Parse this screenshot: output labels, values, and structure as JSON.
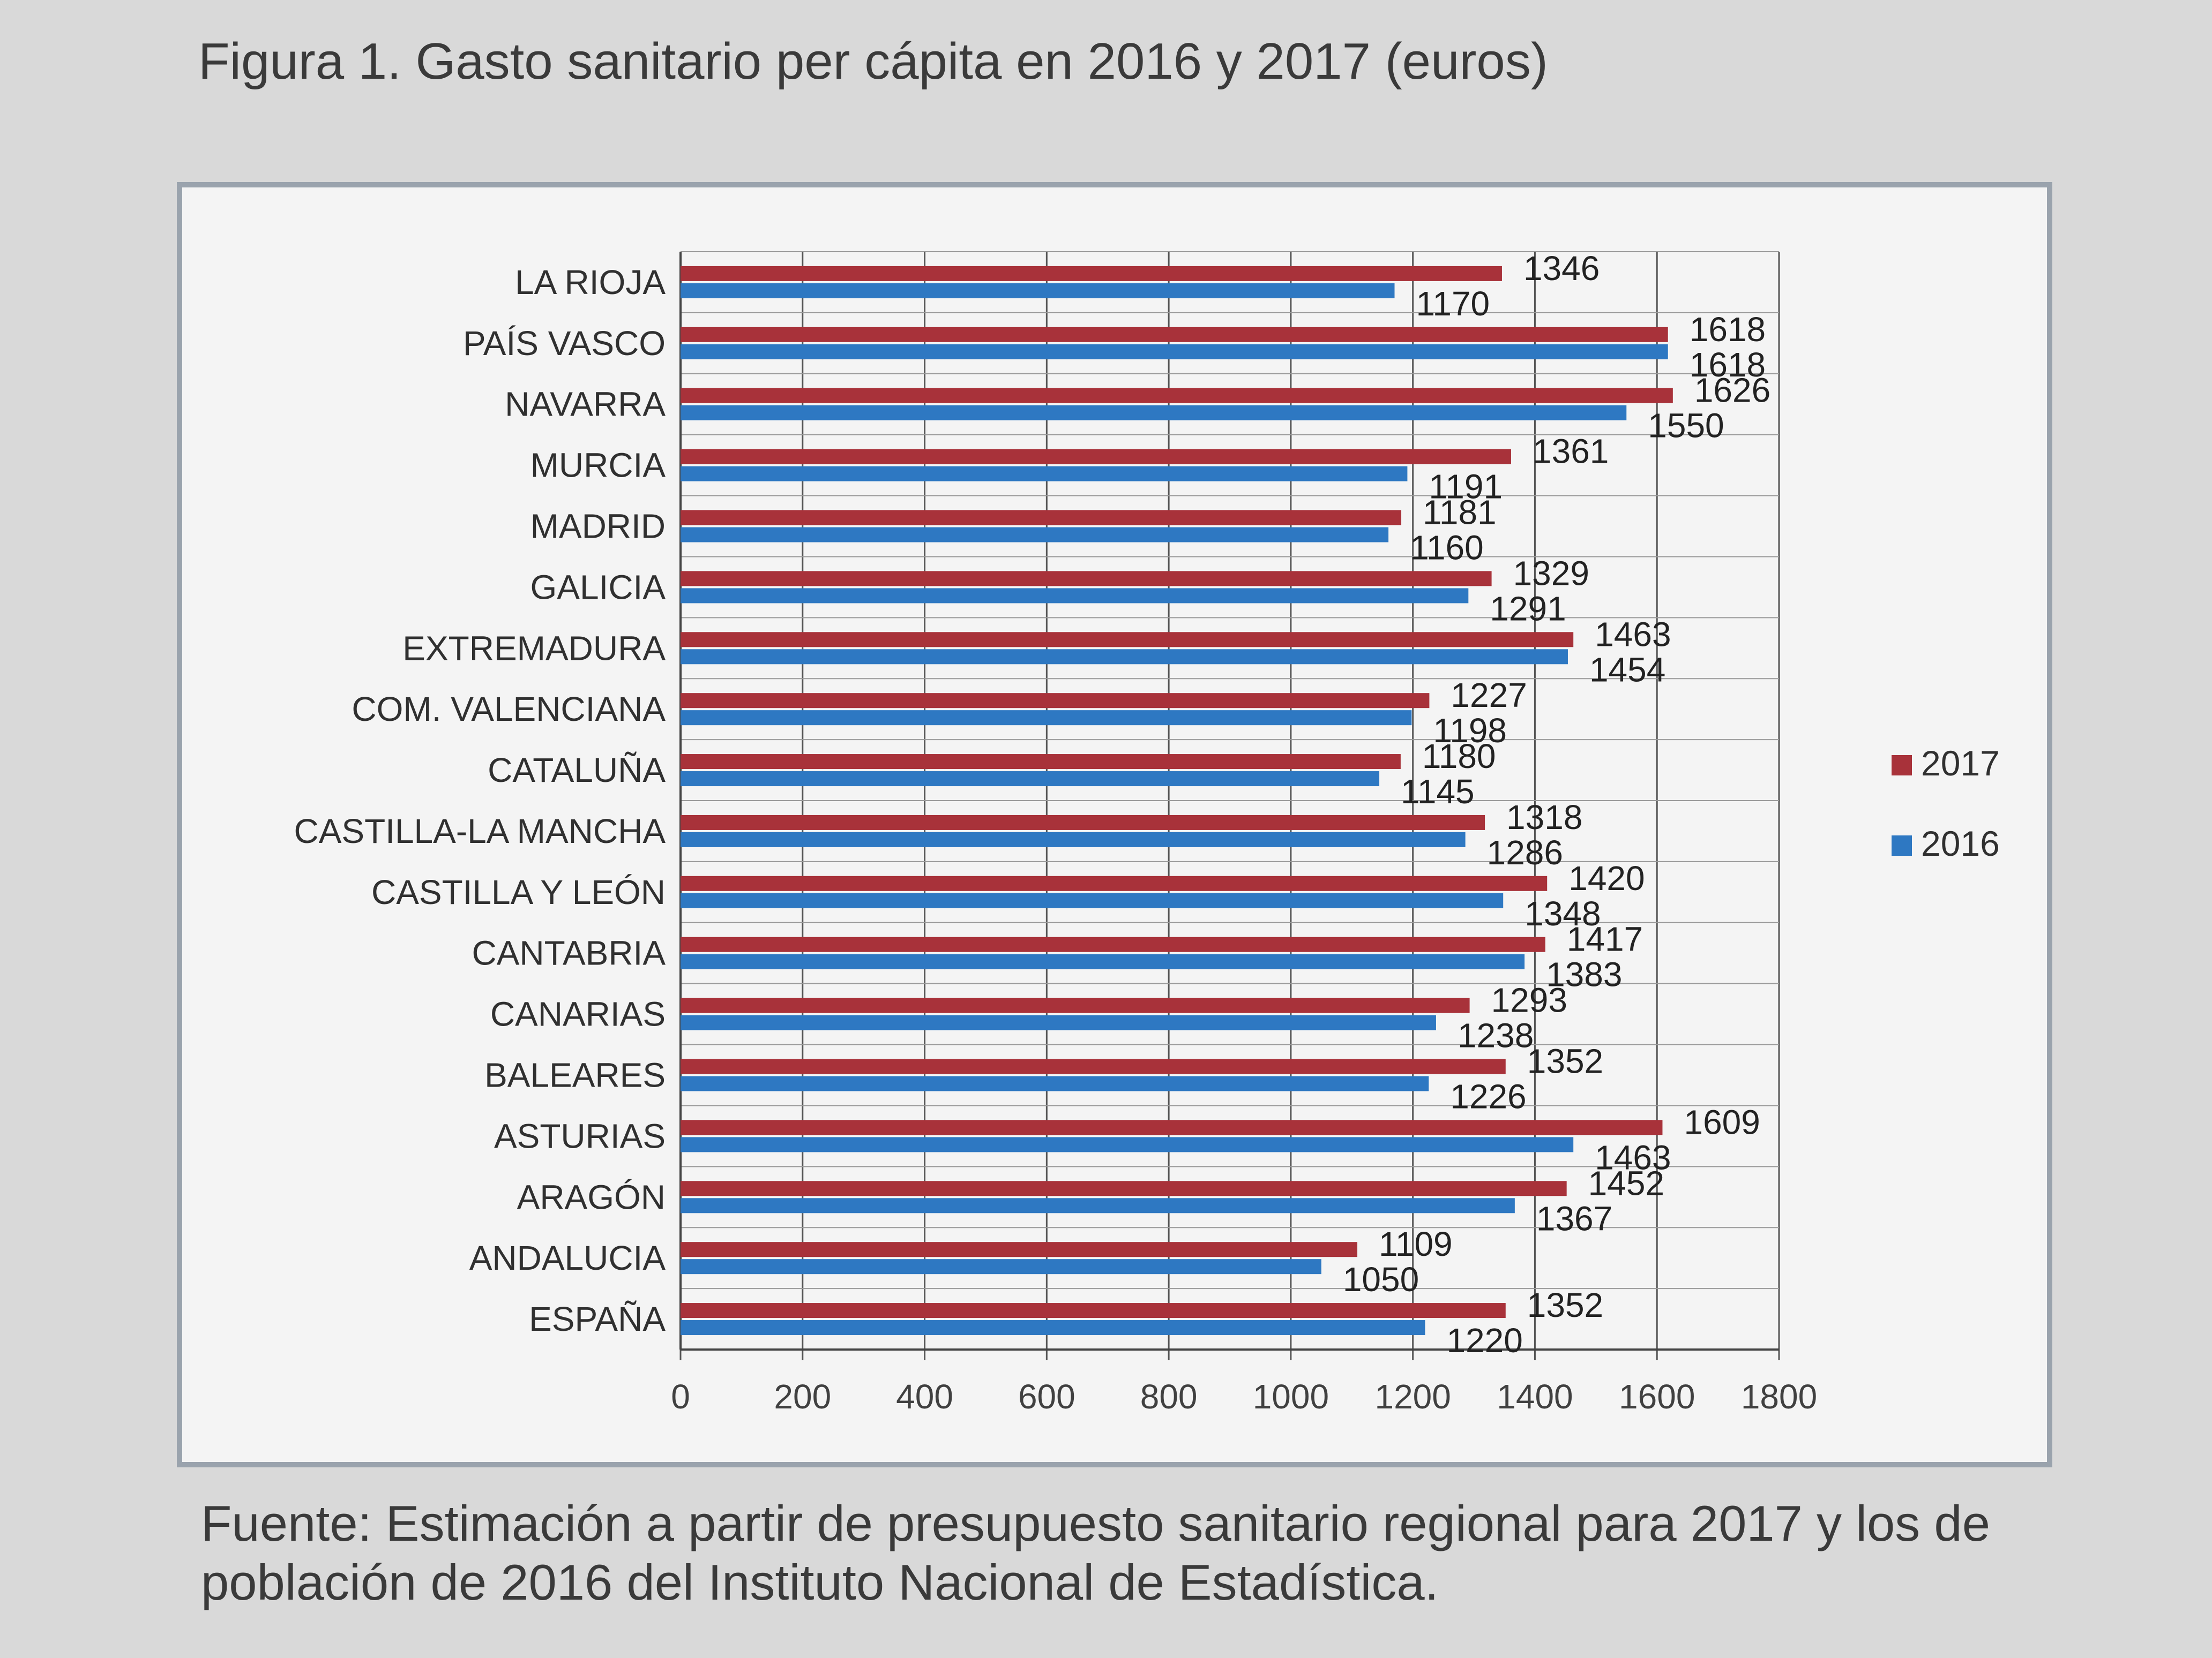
{
  "figure": {
    "title": "Figura 1. Gasto sanitario per cápita en 2016 y 2017 (euros)",
    "source": "Fuente: Estimación a partir de presupuesto sanitario regional para 2017 y los de población de 2016 del Instituto Nacional de Estadística."
  },
  "colors": {
    "s2017": "#a8323a",
    "s2016": "#2e78c2",
    "grid": "#555555",
    "frame": "#9aa3ad"
  },
  "chart_data": {
    "type": "bar",
    "orientation": "horizontal",
    "title": "",
    "xlabel": "",
    "ylabel": "",
    "xlim": [
      0,
      1800
    ],
    "xticks": [
      0,
      200,
      400,
      600,
      800,
      1000,
      1200,
      1400,
      1600,
      1800
    ],
    "grid": true,
    "legend": "right",
    "categories": [
      "LA RIOJA",
      "PAÍS VASCO",
      "NAVARRA",
      "MURCIA",
      "MADRID",
      "GALICIA",
      "EXTREMADURA",
      "COM. VALENCIANA",
      "CATALUÑA",
      "CASTILLA-LA MANCHA",
      "CASTILLA Y LEÓN",
      "CANTABRIA",
      "CANARIAS",
      "BALEARES",
      "ASTURIAS",
      "ARAGÓN",
      "ANDALUCIA",
      "ESPAÑA"
    ],
    "series": [
      {
        "name": "2017",
        "values": [
          1346,
          1618,
          1626,
          1361,
          1181,
          1329,
          1463,
          1227,
          1180,
          1318,
          1420,
          1417,
          1293,
          1352,
          1609,
          1452,
          1109,
          1352
        ]
      },
      {
        "name": "2016",
        "values": [
          1170,
          1618,
          1550,
          1191,
          1160,
          1291,
          1454,
          1198,
          1145,
          1286,
          1348,
          1383,
          1238,
          1226,
          1463,
          1367,
          1050,
          1220
        ]
      }
    ]
  }
}
